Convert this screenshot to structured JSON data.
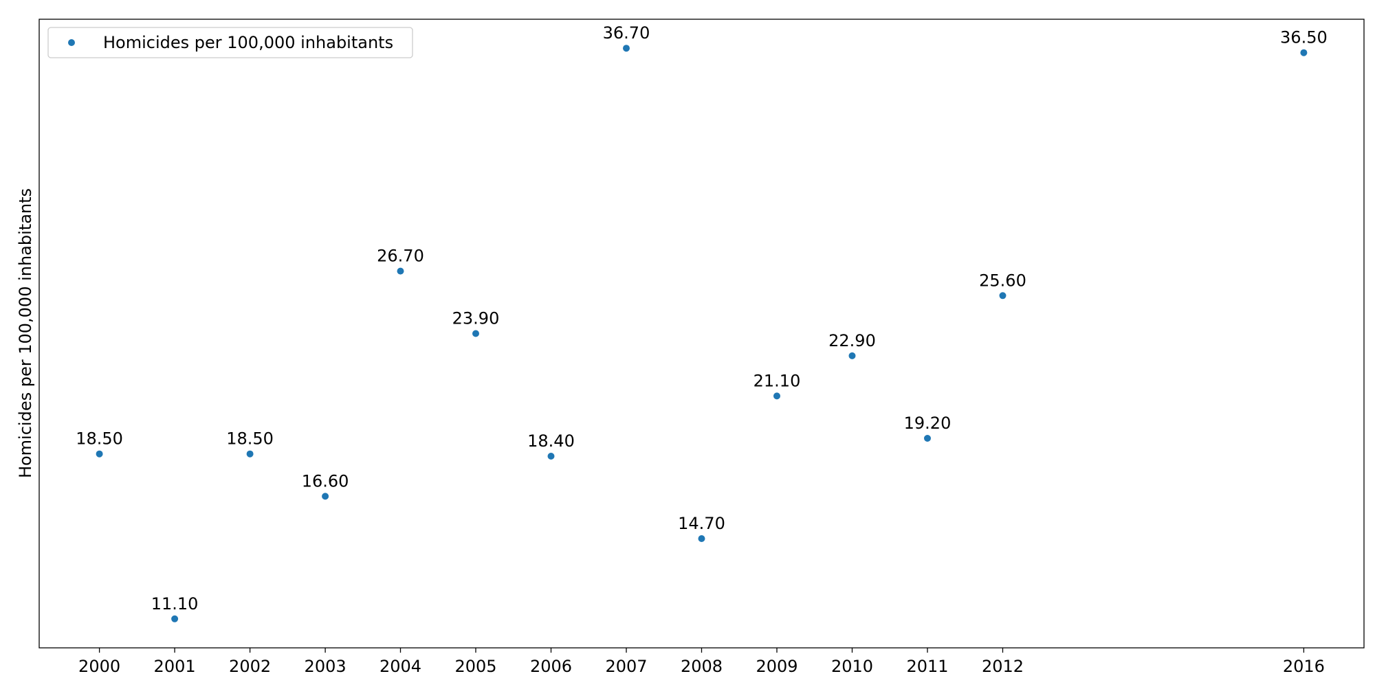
{
  "chart_data": {
    "type": "scatter",
    "title": "",
    "xlabel": "",
    "ylabel": "Homicides per 100,000 inhabitants",
    "legend": {
      "label": "Homicides per 100,000 inhabitants",
      "placement": "top-left"
    },
    "x": [
      2000,
      2001,
      2002,
      2003,
      2004,
      2005,
      2006,
      2007,
      2008,
      2009,
      2010,
      2011,
      2012,
      2016
    ],
    "x_tick_labels": [
      "2000",
      "2001",
      "2002",
      "2003",
      "2004",
      "2005",
      "2006",
      "2007",
      "2008",
      "2009",
      "2010",
      "2011",
      "2012",
      "2016"
    ],
    "y": [
      18.5,
      11.1,
      18.5,
      16.6,
      26.7,
      23.9,
      18.4,
      36.7,
      14.7,
      21.1,
      22.9,
      19.2,
      25.6,
      36.5
    ],
    "data_labels": [
      "18.50",
      "11.10",
      "18.50",
      "16.60",
      "26.70",
      "23.90",
      "18.40",
      "36.70",
      "14.70",
      "21.10",
      "22.90",
      "19.20",
      "25.60",
      "36.50"
    ],
    "xlim": [
      1999.2,
      2016.8
    ],
    "ylim": [
      9.8,
      38.0
    ],
    "grid": false,
    "y_ticks_shown": false,
    "marker_color": "#1f77b4"
  }
}
